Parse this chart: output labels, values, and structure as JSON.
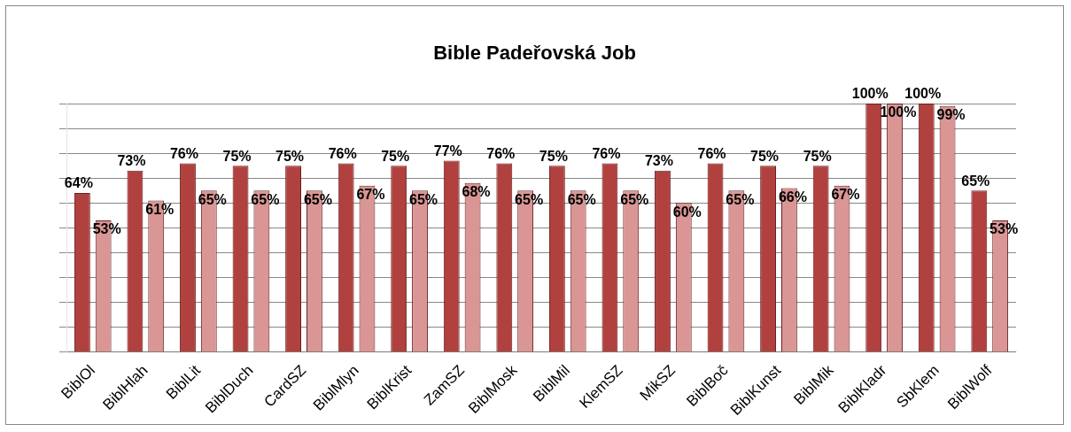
{
  "chart_data": {
    "type": "bar",
    "title": "Bible Padeřovská Job",
    "categories": [
      "BiblOl",
      "BiblHlah",
      "BiblLit",
      "BiblDuch",
      "CardSZ",
      "BiblMlyn",
      "BiblKrist",
      "ZamSZ",
      "BiblMosk",
      "BiblMil",
      "KlemSZ",
      "MikSZ",
      "BiblBoč",
      "BiblKunst",
      "BiblMik",
      "BiblKladr",
      "SbKlem",
      "BiblWolf"
    ],
    "series": [
      {
        "color": "#b0413e",
        "values": [
          64,
          73,
          76,
          75,
          75,
          76,
          75,
          77,
          76,
          75,
          76,
          73,
          76,
          75,
          75,
          100,
          100,
          65
        ],
        "value_labels": [
          "64%",
          "73%",
          "76%",
          "75%",
          "75%",
          "76%",
          "75%",
          "77%",
          "76%",
          "75%",
          "76%",
          "73%",
          "76%",
          "75%",
          "75%",
          "100%",
          "100%",
          "65%"
        ]
      },
      {
        "color": "#d99694",
        "values": [
          53,
          61,
          65,
          65,
          65,
          67,
          65,
          68,
          65,
          65,
          65,
          60,
          65,
          66,
          67,
          100,
          99,
          53
        ],
        "value_labels": [
          "53%",
          "61%",
          "65%",
          "65%",
          "65%",
          "67%",
          "65%",
          "68%",
          "65%",
          "65%",
          "65%",
          "60%",
          "65%",
          "66%",
          "67%",
          "100%",
          "99%",
          "53%"
        ]
      }
    ],
    "tick_labels": "x",
    "grid": "y",
    "legend": false
  }
}
